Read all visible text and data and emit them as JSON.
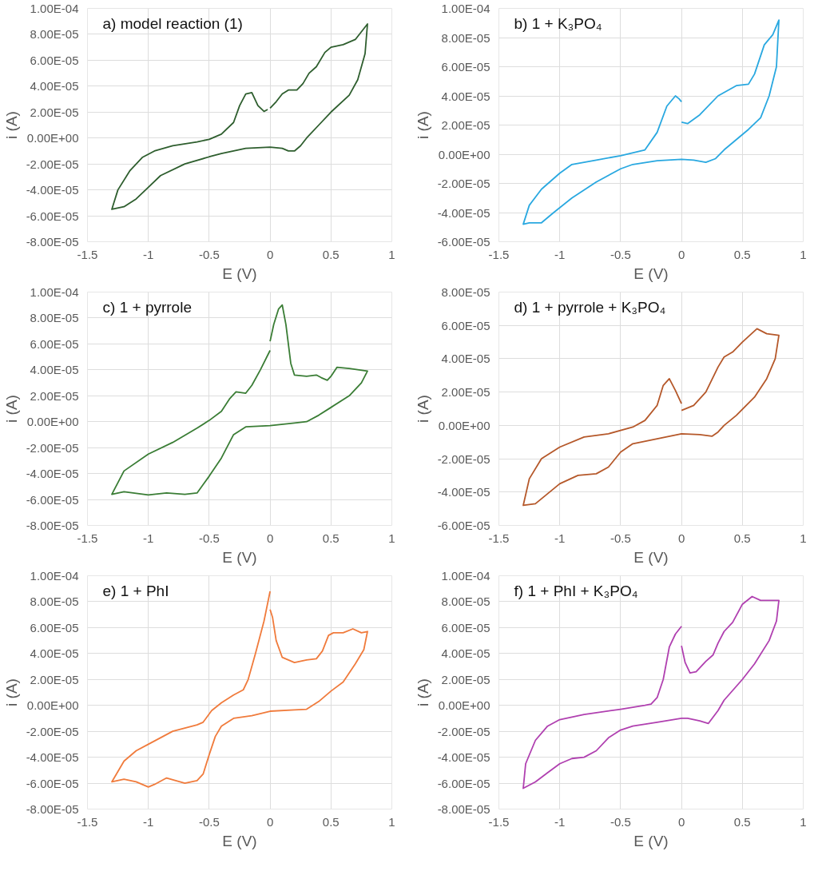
{
  "chart_data": [
    {
      "type": "line",
      "title": "a) model reaction (1)",
      "xlabel": "E (V)",
      "ylabel": "i (A)",
      "grid": true,
      "marker": "none",
      "line_style": "solid",
      "xlim": [
        -1.5,
        1
      ],
      "xticks": [
        -1.5,
        -1,
        -0.5,
        0,
        0.5,
        1
      ],
      "ylim": [
        -8e-05,
        0.0001
      ],
      "yticks": [
        {
          "value": -8e-05,
          "label": "-8.00E-05"
        },
        {
          "value": -6e-05,
          "label": "-6.00E-05"
        },
        {
          "value": -4e-05,
          "label": "-4.00E-05"
        },
        {
          "value": -2e-05,
          "label": "-2.00E-05"
        },
        {
          "value": 0,
          "label": "0.00E+00"
        },
        {
          "value": 2e-05,
          "label": "2.00E-05"
        },
        {
          "value": 4e-05,
          "label": "4.00E-05"
        },
        {
          "value": 6e-05,
          "label": "6.00E-05"
        },
        {
          "value": 8e-05,
          "label": "8.00E-05"
        },
        {
          "value": 0.0001,
          "label": "1.00E-04"
        }
      ],
      "series": [
        {
          "color": "#2e5e2e",
          "x": [
            0,
            0.05,
            0.1,
            0.15,
            0.22,
            0.27,
            0.32,
            0.38,
            0.45,
            0.5,
            0.6,
            0.7,
            0.8,
            0.78,
            0.72,
            0.65,
            0.5,
            0.4,
            0.3,
            0.25,
            0.2,
            0.15,
            0.1,
            0,
            -0.2,
            -0.4,
            -0.5,
            -0.7,
            -0.9,
            -1.0,
            -1.1,
            -1.2,
            -1.3,
            -1.25,
            -1.15,
            -1.05,
            -0.95,
            -0.8,
            -0.6,
            -0.5,
            -0.4,
            -0.3,
            -0.25,
            -0.2,
            -0.15,
            -0.1,
            -0.05,
            -0.02
          ],
          "values": [
            2.3e-05,
            2.8e-05,
            3.4e-05,
            3.7e-05,
            3.7e-05,
            4.2e-05,
            5e-05,
            5.5e-05,
            6.6e-05,
            7e-05,
            7.2e-05,
            7.6e-05,
            8.8e-05,
            6.5e-05,
            4.5e-05,
            3.3e-05,
            2e-05,
            1e-05,
            0,
            -6e-06,
            -1e-05,
            -1e-05,
            -8e-06,
            -7e-06,
            -8e-06,
            -1.2e-05,
            -1.45e-05,
            -2e-05,
            -2.9e-05,
            -3.8e-05,
            -4.7e-05,
            -5.3e-05,
            -5.5e-05,
            -4e-05,
            -2.5e-05,
            -1.5e-05,
            -1e-05,
            -6e-06,
            -3e-06,
            -1e-06,
            3e-06,
            1.2e-05,
            2.5e-05,
            3.4e-05,
            3.5e-05,
            2.5e-05,
            2.05e-05,
            2.2e-05
          ]
        }
      ]
    },
    {
      "type": "line",
      "title": "b) 1 + K₃PO₄",
      "xlabel": "E (V)",
      "ylabel": "i (A)",
      "grid": true,
      "marker": "none",
      "line_style": "solid",
      "xlim": [
        -1.5,
        1
      ],
      "xticks": [
        -1.5,
        -1,
        -0.5,
        0,
        0.5,
        1
      ],
      "ylim": [
        -6e-05,
        0.0001
      ],
      "yticks": [
        {
          "value": -6e-05,
          "label": "-6.00E-05"
        },
        {
          "value": -4e-05,
          "label": "-4.00E-05"
        },
        {
          "value": -2e-05,
          "label": "-2.00E-05"
        },
        {
          "value": 0,
          "label": "0.00E+00"
        },
        {
          "value": 2e-05,
          "label": "2.00E-05"
        },
        {
          "value": 4e-05,
          "label": "4.00E-05"
        },
        {
          "value": 6e-05,
          "label": "6.00E-05"
        },
        {
          "value": 8e-05,
          "label": "8.00E-05"
        },
        {
          "value": 0.0001,
          "label": "1.00E-04"
        }
      ],
      "series": [
        {
          "color": "#29a8e0",
          "x": [
            0,
            0.05,
            0.15,
            0.3,
            0.45,
            0.55,
            0.6,
            0.68,
            0.75,
            0.8,
            0.78,
            0.72,
            0.65,
            0.55,
            0.45,
            0.35,
            0.28,
            0.2,
            0.1,
            0,
            -0.2,
            -0.4,
            -0.5,
            -0.7,
            -0.9,
            -1.05,
            -1.15,
            -1.25,
            -1.3,
            -1.25,
            -1.15,
            -1.0,
            -0.9,
            -0.7,
            -0.5,
            -0.3,
            -0.2,
            -0.12,
            -0.05,
            -0.02,
            0
          ],
          "values": [
            2.2e-05,
            2.1e-05,
            2.7e-05,
            4e-05,
            4.7e-05,
            4.8e-05,
            5.5e-05,
            7.5e-05,
            8.2e-05,
            9.2e-05,
            6e-05,
            4e-05,
            2.5e-05,
            1.7e-05,
            1e-05,
            3e-06,
            -3e-06,
            -5.5e-06,
            -4e-06,
            -3.5e-06,
            -4.5e-06,
            -7e-06,
            -1e-05,
            -1.9e-05,
            -3e-05,
            -4e-05,
            -4.7e-05,
            -4.7e-05,
            -4.8e-05,
            -3.5e-05,
            -2.4e-05,
            -1.3e-05,
            -7e-06,
            -4e-06,
            -1e-06,
            3e-06,
            1.5e-05,
            3.3e-05,
            4e-05,
            3.8e-05,
            3.6e-05
          ]
        }
      ]
    },
    {
      "type": "line",
      "title": "c) 1 + pyrrole",
      "xlabel": "E (V)",
      "ylabel": "i (A)",
      "grid": true,
      "marker": "none",
      "line_style": "solid",
      "xlim": [
        -1.5,
        1
      ],
      "xticks": [
        -1.5,
        -1,
        -0.5,
        0,
        0.5,
        1
      ],
      "ylim": [
        -8e-05,
        0.0001
      ],
      "yticks": [
        {
          "value": -8e-05,
          "label": "-8.00E-05"
        },
        {
          "value": -6e-05,
          "label": "-6.00E-05"
        },
        {
          "value": -4e-05,
          "label": "-4.00E-05"
        },
        {
          "value": -2e-05,
          "label": "-2.00E-05"
        },
        {
          "value": 0,
          "label": "0.00E+00"
        },
        {
          "value": 2e-05,
          "label": "2.00E-05"
        },
        {
          "value": 4e-05,
          "label": "4.00E-05"
        },
        {
          "value": 6e-05,
          "label": "6.00E-05"
        },
        {
          "value": 8e-05,
          "label": "8.00E-05"
        },
        {
          "value": 0.0001,
          "label": "1.00E-04"
        }
      ],
      "series": [
        {
          "color": "#3a7d35",
          "x": [
            0,
            0.03,
            0.07,
            0.1,
            0.13,
            0.17,
            0.2,
            0.3,
            0.38,
            0.42,
            0.47,
            0.5,
            0.55,
            0.65,
            0.8,
            0.75,
            0.65,
            0.5,
            0.4,
            0.3,
            0.2,
            0,
            -0.2,
            -0.3,
            -0.4,
            -0.5,
            -0.6,
            -0.7,
            -0.85,
            -1.0,
            -1.2,
            -1.3,
            -1.2,
            -1.0,
            -0.8,
            -0.6,
            -0.5,
            -0.4,
            -0.33,
            -0.28,
            -0.2,
            -0.15,
            -0.08,
            0
          ],
          "values": [
            6.2e-05,
            7.5e-05,
            8.7e-05,
            9e-05,
            7.5e-05,
            4.5e-05,
            3.6e-05,
            3.5e-05,
            3.6e-05,
            3.4e-05,
            3.2e-05,
            3.5e-05,
            4.2e-05,
            4.1e-05,
            3.9e-05,
            3e-05,
            2e-05,
            1.1e-05,
            5e-06,
            0,
            -1e-06,
            -3e-06,
            -4e-06,
            -1e-05,
            -2.8e-05,
            -4.2e-05,
            -5.5e-05,
            -5.6e-05,
            -5.5e-05,
            -5.65e-05,
            -5.4e-05,
            -5.6e-05,
            -3.8e-05,
            -2.5e-05,
            -1.6e-05,
            -5e-06,
            1e-06,
            8e-06,
            1.8e-05,
            2.3e-05,
            2.2e-05,
            2.8e-05,
            4e-05,
            5.5e-05
          ]
        }
      ]
    },
    {
      "type": "line",
      "title": "d) 1 + pyrrole + K₃PO₄",
      "xlabel": "E (V)",
      "ylabel": "i (A)",
      "grid": true,
      "marker": "none",
      "line_style": "solid",
      "xlim": [
        -1.5,
        1
      ],
      "xticks": [
        -1.5,
        -1,
        -0.5,
        0,
        0.5,
        1
      ],
      "ylim": [
        -6e-05,
        8e-05
      ],
      "yticks": [
        {
          "value": -6e-05,
          "label": "-6.00E-05"
        },
        {
          "value": -4e-05,
          "label": "-4.00E-05"
        },
        {
          "value": -2e-05,
          "label": "-2.00E-05"
        },
        {
          "value": 0,
          "label": "0.00E+00"
        },
        {
          "value": 2e-05,
          "label": "2.00E-05"
        },
        {
          "value": 4e-05,
          "label": "4.00E-05"
        },
        {
          "value": 6e-05,
          "label": "6.00E-05"
        },
        {
          "value": 8e-05,
          "label": "8.00E-05"
        }
      ],
      "series": [
        {
          "color": "#b5582a",
          "x": [
            0,
            0.1,
            0.2,
            0.3,
            0.35,
            0.42,
            0.5,
            0.62,
            0.7,
            0.8,
            0.77,
            0.7,
            0.6,
            0.45,
            0.35,
            0.3,
            0.25,
            0.15,
            0,
            -0.2,
            -0.4,
            -0.5,
            -0.6,
            -0.7,
            -0.85,
            -1.0,
            -1.1,
            -1.2,
            -1.3,
            -1.25,
            -1.15,
            -1.0,
            -0.8,
            -0.6,
            -0.4,
            -0.3,
            -0.2,
            -0.15,
            -0.1,
            -0.05,
            0
          ],
          "values": [
            9e-06,
            1.2e-05,
            2e-05,
            3.5e-05,
            4.1e-05,
            4.4e-05,
            5e-05,
            5.8e-05,
            5.5e-05,
            5.4e-05,
            4e-05,
            2.8e-05,
            1.7e-05,
            6e-06,
            0,
            -4e-06,
            -6.5e-06,
            -5.5e-06,
            -5e-06,
            -8e-06,
            -1.1e-05,
            -1.6e-05,
            -2.5e-05,
            -2.9e-05,
            -3e-05,
            -3.5e-05,
            -4.1e-05,
            -4.7e-05,
            -4.8e-05,
            -3.2e-05,
            -2e-05,
            -1.3e-05,
            -7e-06,
            -5e-06,
            -1e-06,
            3e-06,
            1.2e-05,
            2.4e-05,
            2.8e-05,
            2.1e-05,
            1.3e-05
          ]
        }
      ]
    },
    {
      "type": "line",
      "title": "e) 1 + PhI",
      "xlabel": "E (V)",
      "ylabel": "i (A)",
      "grid": true,
      "marker": "none",
      "line_style": "solid",
      "xlim": [
        -1.5,
        1
      ],
      "xticks": [
        -1.5,
        -1,
        -0.5,
        0,
        0.5,
        1
      ],
      "ylim": [
        -8e-05,
        0.0001
      ],
      "yticks": [
        {
          "value": -8e-05,
          "label": "-8.00E-05"
        },
        {
          "value": -6e-05,
          "label": "-6.00E-05"
        },
        {
          "value": -4e-05,
          "label": "-4.00E-05"
        },
        {
          "value": -2e-05,
          "label": "-2.00E-05"
        },
        {
          "value": 0,
          "label": "0.00E+00"
        },
        {
          "value": 2e-05,
          "label": "2.00E-05"
        },
        {
          "value": 4e-05,
          "label": "4.00E-05"
        },
        {
          "value": 6e-05,
          "label": "6.00E-05"
        },
        {
          "value": 8e-05,
          "label": "8.00E-05"
        },
        {
          "value": 0.0001,
          "label": "1.00E-04"
        }
      ],
      "series": [
        {
          "color": "#f07b3c",
          "x": [
            0,
            0.02,
            0.05,
            0.1,
            0.2,
            0.3,
            0.38,
            0.43,
            0.48,
            0.52,
            0.6,
            0.68,
            0.75,
            0.8,
            0.77,
            0.7,
            0.6,
            0.5,
            0.4,
            0.3,
            0.2,
            0,
            -0.15,
            -0.3,
            -0.4,
            -0.45,
            -0.5,
            -0.55,
            -0.6,
            -0.7,
            -0.85,
            -0.95,
            -1.0,
            -1.1,
            -1.2,
            -1.3,
            -1.2,
            -1.1,
            -1.0,
            -0.8,
            -0.6,
            -0.55,
            -0.48,
            -0.4,
            -0.3,
            -0.22,
            -0.18,
            -0.12,
            -0.05,
            0
          ],
          "values": [
            7.4e-05,
            6.8e-05,
            5e-05,
            3.7e-05,
            3.3e-05,
            3.5e-05,
            3.6e-05,
            4.2e-05,
            5.4e-05,
            5.6e-05,
            5.6e-05,
            5.9e-05,
            5.6e-05,
            5.7e-05,
            4.3e-05,
            3.2e-05,
            1.8e-05,
            1.1e-05,
            3e-06,
            -3e-06,
            -3.5e-06,
            -4.5e-06,
            -8e-06,
            -1e-05,
            -1.6e-05,
            -2.4e-05,
            -3.8e-05,
            -5.3e-05,
            -5.8e-05,
            -6e-05,
            -5.6e-05,
            -6.1e-05,
            -6.3e-05,
            -5.9e-05,
            -5.7e-05,
            -5.9e-05,
            -4.3e-05,
            -3.5e-05,
            -3e-05,
            -2e-05,
            -1.5e-05,
            -1.3e-05,
            -4e-06,
            2e-06,
            8e-06,
            1.2e-05,
            2e-05,
            4e-05,
            6.5e-05,
            8.8e-05
          ]
        }
      ]
    },
    {
      "type": "line",
      "title": "f) 1 + PhI + K₃PO₄",
      "xlabel": "E (V)",
      "ylabel": "i (A)",
      "grid": true,
      "marker": "none",
      "line_style": "solid",
      "xlim": [
        -1.5,
        1
      ],
      "xticks": [
        -1.5,
        -1,
        -0.5,
        0,
        0.5,
        1
      ],
      "ylim": [
        -8e-05,
        0.0001
      ],
      "yticks": [
        {
          "value": -8e-05,
          "label": "-8.00E-05"
        },
        {
          "value": -6e-05,
          "label": "-6.00E-05"
        },
        {
          "value": -4e-05,
          "label": "-4.00E-05"
        },
        {
          "value": -2e-05,
          "label": "-2.00E-05"
        },
        {
          "value": 0,
          "label": "0.00E+00"
        },
        {
          "value": 2e-05,
          "label": "2.00E-05"
        },
        {
          "value": 4e-05,
          "label": "4.00E-05"
        },
        {
          "value": 6e-05,
          "label": "6.00E-05"
        },
        {
          "value": 8e-05,
          "label": "8.00E-05"
        },
        {
          "value": 0.0001,
          "label": "1.00E-04"
        }
      ],
      "series": [
        {
          "color": "#b040b0",
          "x": [
            0,
            0.03,
            0.07,
            0.12,
            0.2,
            0.26,
            0.3,
            0.35,
            0.42,
            0.5,
            0.58,
            0.65,
            0.8,
            0.78,
            0.72,
            0.6,
            0.5,
            0.35,
            0.3,
            0.22,
            0.15,
            0.05,
            0,
            -0.2,
            -0.4,
            -0.5,
            -0.6,
            -0.7,
            -0.8,
            -0.9,
            -1.0,
            -1.1,
            -1.2,
            -1.3,
            -1.28,
            -1.2,
            -1.1,
            -1.0,
            -0.8,
            -0.5,
            -0.3,
            -0.25,
            -0.2,
            -0.15,
            -0.1,
            -0.05,
            0
          ],
          "values": [
            4.6e-05,
            3.3e-05,
            2.5e-05,
            2.6e-05,
            3.4e-05,
            3.9e-05,
            4.8e-05,
            5.7e-05,
            6.4e-05,
            7.8e-05,
            8.4e-05,
            8.1e-05,
            8.1e-05,
            6.5e-05,
            5e-05,
            3.2e-05,
            2e-05,
            4e-06,
            -4e-06,
            -1.4e-05,
            -1.2e-05,
            -1e-05,
            -1e-05,
            -1.3e-05,
            -1.6e-05,
            -1.9e-05,
            -2.5e-05,
            -3.5e-05,
            -4e-05,
            -4.1e-05,
            -4.5e-05,
            -5.2e-05,
            -5.9e-05,
            -6.4e-05,
            -4.5e-05,
            -2.7e-05,
            -1.6e-05,
            -1.1e-05,
            -7e-06,
            -3e-06,
            0,
            1e-06,
            6e-06,
            2e-05,
            4.5e-05,
            5.5e-05,
            6.1e-05
          ]
        }
      ]
    }
  ]
}
